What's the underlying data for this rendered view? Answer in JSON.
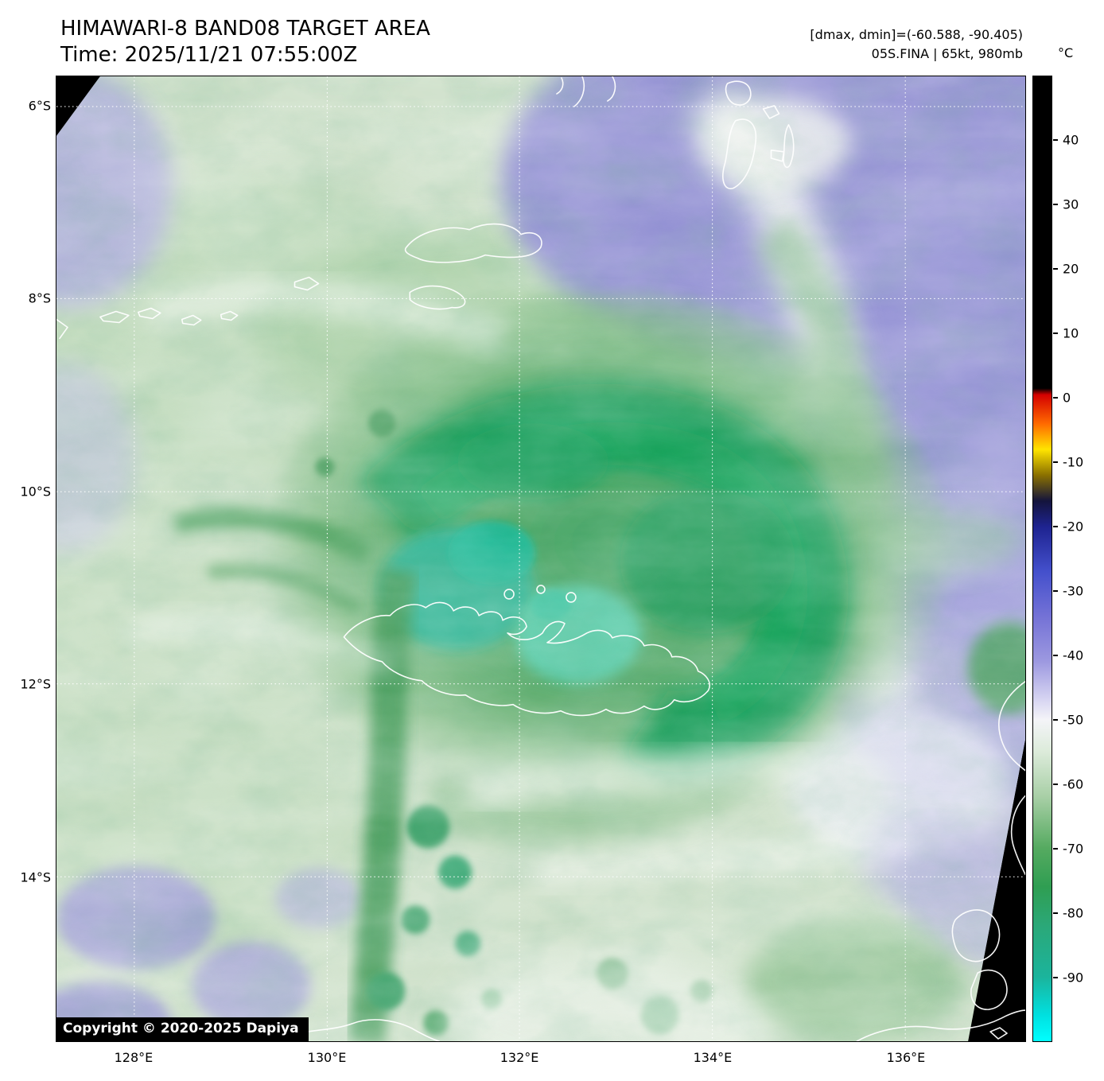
{
  "header": {
    "title": "HIMAWARI-8 BAND08 TARGET AREA",
    "time": "Time: 2025/11/21 07:55:00Z",
    "dmax_dmin": "[dmax, dmin]=(-60.588, -90.405)",
    "storm_info": "05S.FINA | 65kt, 980mb"
  },
  "map": {
    "copyright": "Copyright © 2020-2025 Dapiya",
    "lat_tick_labels": [
      "6°S",
      "8°S",
      "10°S",
      "12°S",
      "14°S"
    ],
    "lon_tick_labels": [
      "128°E",
      "130°E",
      "132°E",
      "134°E",
      "136°E"
    ]
  },
  "colorbar": {
    "unit_label": "°C",
    "tick_values": [
      40,
      30,
      20,
      10,
      0,
      -10,
      -20,
      -30,
      -40,
      -50,
      -60,
      -70,
      -80,
      -90
    ],
    "value_range": [
      50,
      -100
    ],
    "gradient_stops": [
      {
        "v": 50,
        "c": "#000000"
      },
      {
        "v": 1.5,
        "c": "#000000"
      },
      {
        "v": 0.5,
        "c": "#d40000"
      },
      {
        "v": -4,
        "c": "#ff6a00"
      },
      {
        "v": -8,
        "c": "#ffe400"
      },
      {
        "v": -12,
        "c": "#8a7000"
      },
      {
        "v": -16,
        "c": "#14143c"
      },
      {
        "v": -20,
        "c": "#1e2390"
      },
      {
        "v": -27,
        "c": "#4450cc"
      },
      {
        "v": -34,
        "c": "#7472d6"
      },
      {
        "v": -41,
        "c": "#9d99e0"
      },
      {
        "v": -47,
        "c": "#d8d6f2"
      },
      {
        "v": -50,
        "c": "#f4f4f8"
      },
      {
        "v": -55,
        "c": "#dcebda"
      },
      {
        "v": -62,
        "c": "#a8cfa6"
      },
      {
        "v": -70,
        "c": "#55aa60"
      },
      {
        "v": -76,
        "c": "#2f9e52"
      },
      {
        "v": -82,
        "c": "#2ba878"
      },
      {
        "v": -90,
        "c": "#1bb49c"
      },
      {
        "v": -96,
        "c": "#00e0e0"
      },
      {
        "v": -100,
        "c": "#00ffff"
      }
    ]
  }
}
